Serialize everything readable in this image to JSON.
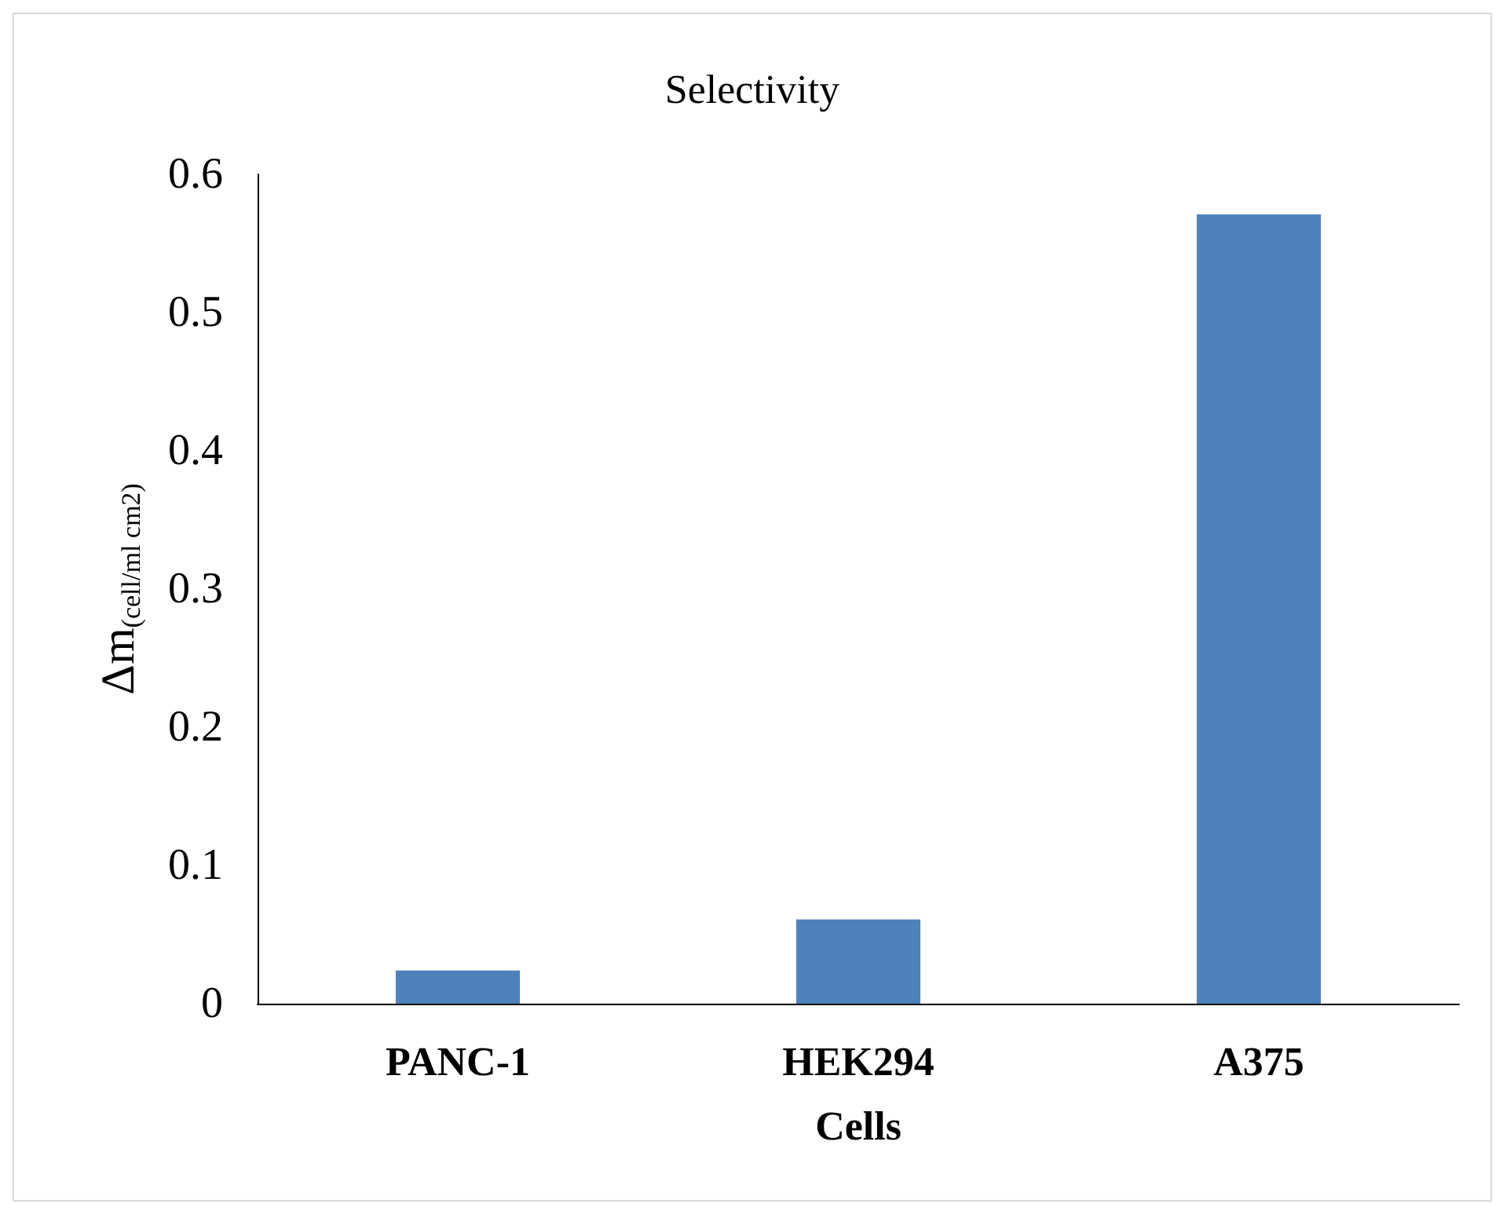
{
  "chart_data": {
    "type": "bar",
    "title": "Selectivity",
    "xlabel": "Cells",
    "ylabel": "Δm$_{(cell/ml cm2)}$",
    "categories": [
      "PANC-1",
      "HEK294",
      "A375"
    ],
    "values": [
      0.024,
      0.061,
      0.571
    ],
    "color": "#4f81bd",
    "ylim": [
      0,
      0.6
    ],
    "yticks": [
      0,
      0.1,
      0.2,
      0.3,
      0.4,
      0.5,
      0.6
    ],
    "grid": false
  }
}
